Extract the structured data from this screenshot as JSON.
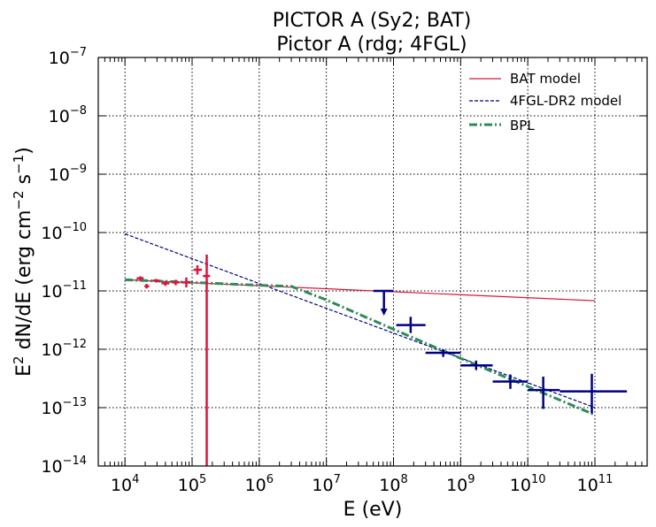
{
  "chart_data": {
    "type": "scatter",
    "title_line1": "PICTOR A (Sy2; BAT)",
    "title_line2": "Pictor A (rdg; 4FGL)",
    "xlabel": "E (eV)",
    "ylabel_main": "E",
    "ylabel_sup1": "2",
    "ylabel_mid": " dN/dE (erg cm",
    "ylabel_sup2": "−2",
    "ylabel_mid2": " s",
    "ylabel_sup3": "−1",
    "ylabel_end": ")",
    "xscale": "log",
    "yscale": "log",
    "xlim": [
      4000,
      600000000000
    ],
    "ylim": [
      1e-14,
      1e-07
    ],
    "grid": true,
    "legend_position": "top-right",
    "x_ticks": [
      {
        "value": 10000,
        "base": "10",
        "exp": "4"
      },
      {
        "value": 100000,
        "base": "10",
        "exp": "5"
      },
      {
        "value": 1000000,
        "base": "10",
        "exp": "6"
      },
      {
        "value": 10000000,
        "base": "10",
        "exp": "7"
      },
      {
        "value": 100000000,
        "base": "10",
        "exp": "8"
      },
      {
        "value": 1000000000,
        "base": "10",
        "exp": "9"
      },
      {
        "value": 10000000000,
        "base": "10",
        "exp": "10"
      },
      {
        "value": 100000000000,
        "base": "10",
        "exp": "11"
      }
    ],
    "y_ticks": [
      {
        "value": 1e-14,
        "base": "10",
        "exp": "−14"
      },
      {
        "value": 1e-13,
        "base": "10",
        "exp": "−13"
      },
      {
        "value": 1e-12,
        "base": "10",
        "exp": "−12"
      },
      {
        "value": 1e-11,
        "base": "10",
        "exp": "−11"
      },
      {
        "value": 1e-10,
        "base": "10",
        "exp": "−10"
      },
      {
        "value": 1e-09,
        "base": "10",
        "exp": "−9"
      },
      {
        "value": 1e-08,
        "base": "10",
        "exp": "−8"
      },
      {
        "value": 1e-07,
        "base": "10",
        "exp": "−7"
      }
    ],
    "legend": [
      {
        "label": "BAT model",
        "color": "#dc143c",
        "style": "solid"
      },
      {
        "label": "4FGL-DR2 model",
        "color": "#000080",
        "style": "dashed"
      },
      {
        "label": "BPL",
        "color": "#2e8b57",
        "style": "dashdot"
      }
    ],
    "lines": [
      {
        "name": "BAT model",
        "color": "#dc143c",
        "style": "solid",
        "x": [
          10000,
          100000000000
        ],
        "y": [
          1.55e-11,
          6.8e-12
        ]
      },
      {
        "name": "4FGL-DR2 model",
        "color": "#000080",
        "style": "dashed",
        "x": [
          10000,
          100000000000
        ],
        "y": [
          9.5e-11,
          1e-13
        ]
      },
      {
        "name": "BPL",
        "color": "#2e8b57",
        "style": "dashdot",
        "x": [
          10000,
          100000,
          1000000,
          3000000,
          10000000,
          100000000,
          1000000000,
          10000000000,
          100000000000
        ],
        "y": [
          1.55e-11,
          1.4e-11,
          1.25e-11,
          1.2e-11,
          7e-12,
          2.2e-12,
          7e-13,
          2.3e-13,
          7.5e-14
        ]
      }
    ],
    "bat_points": {
      "color": "#dc143c",
      "points": [
        {
          "x": 17000,
          "xlo": 15000,
          "xhi": 19000,
          "y": 1.65e-11,
          "ylo": 1.52e-11,
          "yhi": 1.78e-11
        },
        {
          "x": 21000,
          "xlo": 19500,
          "xhi": 23000,
          "y": 1.2e-11,
          "ylo": 1.1e-11,
          "yhi": 1.32e-11
        },
        {
          "x": 29000,
          "xlo": 26000,
          "xhi": 33000,
          "y": 1.5e-11,
          "ylo": 1.4e-11,
          "yhi": 1.6e-11
        },
        {
          "x": 40000,
          "xlo": 35000,
          "xhi": 46000,
          "y": 1.35e-11,
          "ylo": 1.22e-11,
          "yhi": 1.48e-11
        },
        {
          "x": 57000,
          "xlo": 50000,
          "xhi": 65000,
          "y": 1.4e-11,
          "ylo": 1.25e-11,
          "yhi": 1.55e-11
        },
        {
          "x": 82000,
          "xlo": 70000,
          "xhi": 95000,
          "y": 1.4e-11,
          "ylo": 1.15e-11,
          "yhi": 1.7e-11
        },
        {
          "x": 120000,
          "xlo": 105000,
          "xhi": 140000,
          "y": 2.3e-11,
          "ylo": 1.9e-11,
          "yhi": 2.75e-11
        },
        {
          "x": 165000,
          "xlo": 145000,
          "xhi": 185000,
          "y": 1.8e-11,
          "ylo": 1e-14,
          "yhi": 4.2e-11
        }
      ]
    },
    "lat_points": {
      "color": "#000080",
      "upper_limit": {
        "x": 72000000,
        "xlo": 50000000,
        "xhi": 100000000,
        "y": 1e-11
      },
      "points": [
        {
          "x": 180000000,
          "xlo": 110000000,
          "xhi": 300000000,
          "y": 2.6e-12,
          "ylo": 1.9e-12,
          "yhi": 3.6e-12
        },
        {
          "x": 550000000,
          "xlo": 300000000,
          "xhi": 1000000000,
          "y": 8.7e-13,
          "ylo": 7.4e-13,
          "yhi": 1e-12
        },
        {
          "x": 1700000000,
          "xlo": 1000000000,
          "xhi": 3000000000,
          "y": 5.3e-13,
          "ylo": 4.4e-13,
          "yhi": 6.4e-13
        },
        {
          "x": 5500000000,
          "xlo": 3000000000,
          "xhi": 10000000000,
          "y": 2.8e-13,
          "ylo": 2.1e-13,
          "yhi": 3.7e-13
        },
        {
          "x": 17000000000,
          "xlo": 10000000000,
          "xhi": 30000000000,
          "y": 2e-13,
          "ylo": 9.5e-14,
          "yhi": 3.4e-13
        },
        {
          "x": 90000000000,
          "xlo": 30000000000,
          "xhi": 300000000000,
          "y": 1.9e-13,
          "ylo": 8e-14,
          "yhi": 3.8e-13
        }
      ]
    }
  }
}
